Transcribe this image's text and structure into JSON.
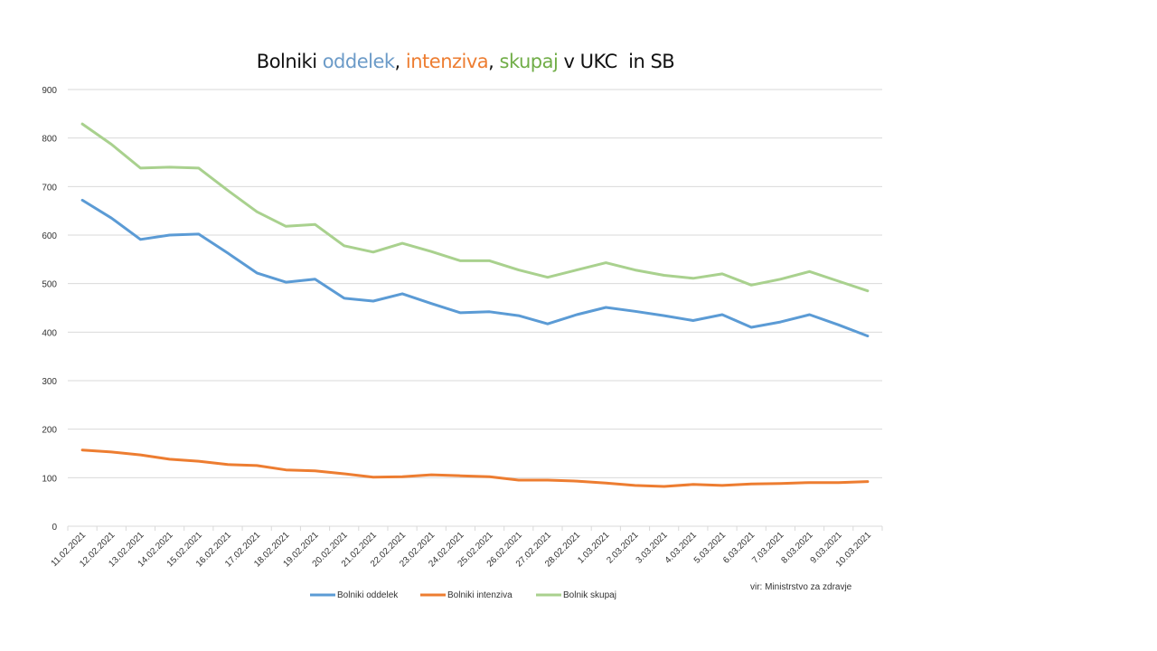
{
  "chart_data": {
    "type": "line",
    "title_parts": [
      {
        "text": "Bolniki ",
        "color": "#111111"
      },
      {
        "text": "oddelek",
        "color": "#6c9bc8"
      },
      {
        "text": ", ",
        "color": "#111111"
      },
      {
        "text": "intenziva",
        "color": "#ed7d31"
      },
      {
        "text": ", ",
        "color": "#111111"
      },
      {
        "text": "skupaj",
        "color": "#70ad47"
      },
      {
        "text": " v UKC  in SB",
        "color": "#111111"
      }
    ],
    "x": [
      "11.02.2021",
      "12.02.2021",
      "13.02.2021",
      "14.02.2021",
      "15.02.2021",
      "16.02.2021",
      "17.02.2021",
      "18.02.2021",
      "19.02.2021",
      "20.02.2021",
      "21.02.2021",
      "22.02.2021",
      "23.02.2021",
      "24.02.2021",
      "25.02.2021",
      "26.02.2021",
      "27.02.2021",
      "28.02.2021",
      "1.03.2021",
      "2.03.2021",
      "3.03.2021",
      "4.03.2021",
      "5.03.2021",
      "6.03.2021",
      "7.03.2021",
      "8.03.2021",
      "9.03.2021",
      "10.03.2021"
    ],
    "series": [
      {
        "name": "Bolniki oddelek",
        "color": "#5b9bd5",
        "values": [
          672,
          635,
          591,
          600,
          602,
          563,
          522,
          503,
          509,
          470,
          464,
          479,
          459,
          440,
          442,
          434,
          417,
          436,
          451,
          443,
          434,
          424,
          436,
          410,
          421,
          436,
          415,
          392
        ]
      },
      {
        "name": "Bolniki intenziva",
        "color": "#ed7d31",
        "values": [
          157,
          153,
          147,
          138,
          134,
          127,
          125,
          116,
          114,
          108,
          101,
          102,
          106,
          104,
          102,
          95,
          95,
          93,
          89,
          84,
          82,
          86,
          84,
          87,
          88,
          90,
          90,
          92
        ]
      },
      {
        "name": "Bolnik skupaj",
        "color": "#a9d18e",
        "values": [
          829,
          787,
          738,
          740,
          738,
          692,
          648,
          618,
          622,
          578,
          565,
          583,
          566,
          547,
          547,
          528,
          513,
          528,
          543,
          528,
          517,
          511,
          520,
          497,
          509,
          525,
          505,
          485
        ]
      }
    ],
    "ylim": [
      0,
      900
    ],
    "yticks": [
      0,
      100,
      200,
      300,
      400,
      500,
      600,
      700,
      800,
      900
    ],
    "grid": true,
    "legend": "bottom",
    "annotation": "vir: Ministrstvo za zdravje",
    "xlabel": "",
    "ylabel": ""
  }
}
